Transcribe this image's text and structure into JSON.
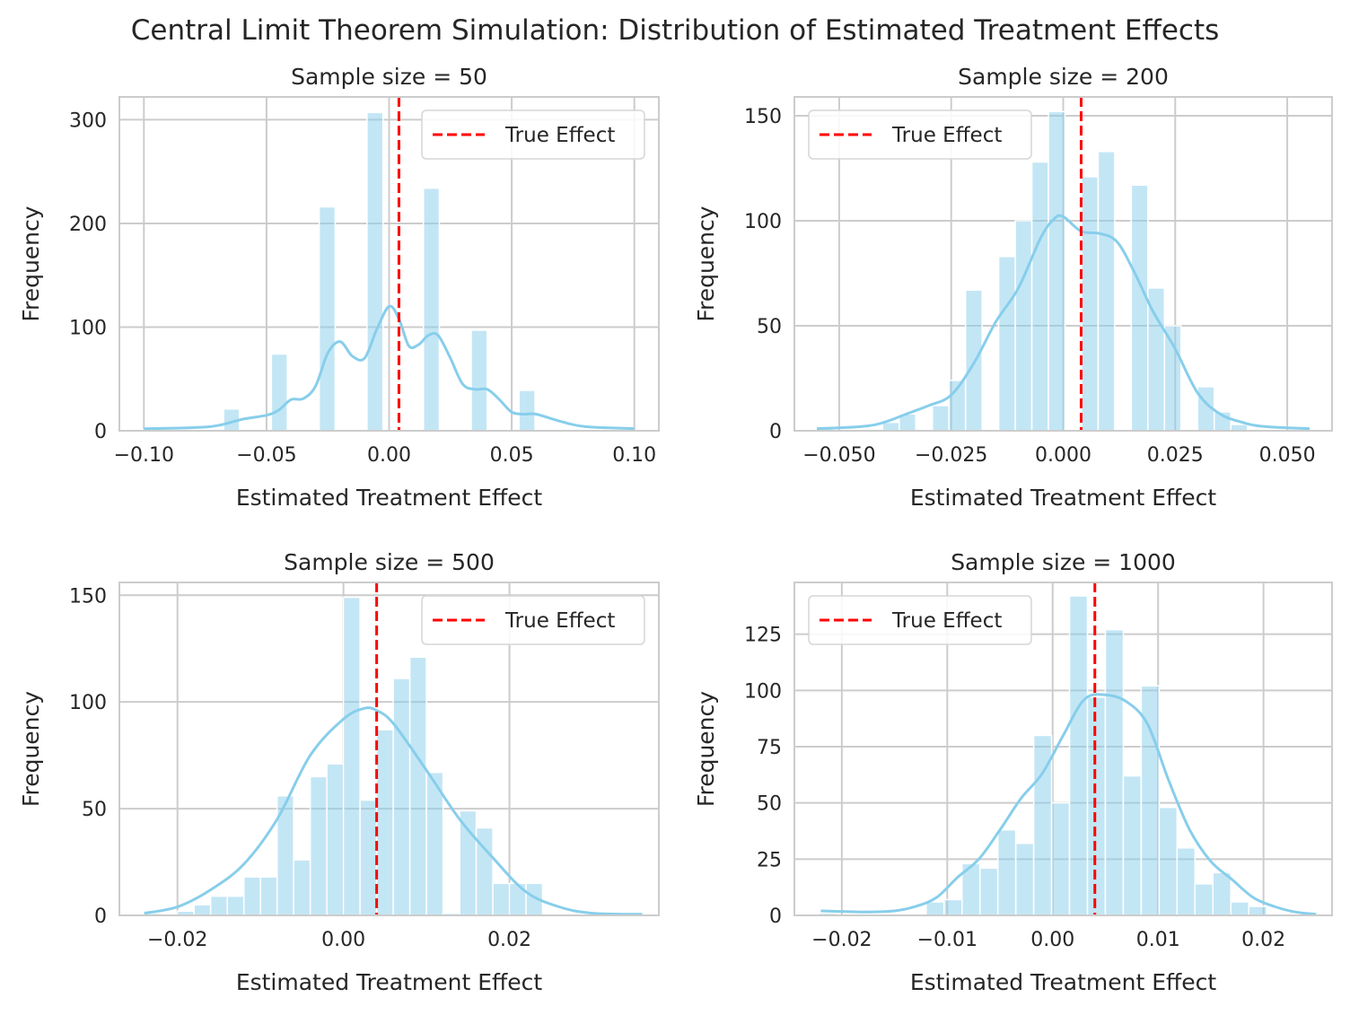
{
  "figure": {
    "suptitle": "Central Limit Theorem Simulation: Distribution of Estimated Treatment Effects"
  },
  "colors": {
    "bar": "#87CEEB",
    "kde": "#87CEEB",
    "true_effect": "#FF0000",
    "grid": "#CCCCCC",
    "text": "#262626"
  },
  "chart_data": [
    {
      "type": "bar",
      "subtype": "histogram-with-kde",
      "title": "Sample size = 50",
      "xlabel": "Estimated Treatment Effect",
      "ylabel": "Frequency",
      "xlim": [
        -0.11,
        0.11
      ],
      "ylim": [
        0,
        322
      ],
      "xticks": [
        -0.1,
        -0.05,
        0.0,
        0.05,
        0.1
      ],
      "xtick_labels": [
        "−0.10",
        "−0.05",
        "0.00",
        "0.05",
        "0.10"
      ],
      "yticks": [
        0,
        100,
        200,
        300
      ],
      "ytick_labels": [
        "0",
        "100",
        "200",
        "300"
      ],
      "true_effect": 0.004,
      "legend": {
        "label": "True Effect",
        "position": "upper right"
      },
      "bins": [
        {
          "x0": -0.1,
          "x1": -0.0935,
          "count": 1
        },
        {
          "x0": -0.0675,
          "x1": -0.061,
          "count": 21
        },
        {
          "x0": -0.048,
          "x1": -0.0415,
          "count": 74
        },
        {
          "x0": -0.0285,
          "x1": -0.022,
          "count": 216
        },
        {
          "x0": -0.009,
          "x1": -0.0025,
          "count": 307
        },
        {
          "x0": 0.014,
          "x1": 0.0205,
          "count": 234
        },
        {
          "x0": 0.0335,
          "x1": 0.04,
          "count": 97
        },
        {
          "x0": 0.053,
          "x1": 0.0595,
          "count": 39
        }
      ],
      "kde": {
        "x": [
          -0.1,
          -0.08,
          -0.07,
          -0.06,
          -0.05,
          -0.045,
          -0.04,
          -0.035,
          -0.03,
          -0.025,
          -0.02,
          -0.015,
          -0.01,
          -0.005,
          0.0,
          0.004,
          0.008,
          0.012,
          0.016,
          0.02,
          0.025,
          0.03,
          0.035,
          0.04,
          0.045,
          0.05,
          0.055,
          0.06,
          0.07,
          0.08,
          0.1
        ],
        "y": [
          2,
          3,
          5,
          11,
          15,
          20,
          30,
          31,
          43,
          75,
          86,
          72,
          70,
          98,
          120,
          108,
          82,
          83,
          92,
          92,
          70,
          45,
          40,
          40,
          30,
          18,
          16,
          16,
          9,
          4,
          2
        ]
      }
    },
    {
      "type": "bar",
      "subtype": "histogram-with-kde",
      "title": "Sample size = 200",
      "xlabel": "Estimated Treatment Effect",
      "ylabel": "Frequency",
      "xlim": [
        -0.06,
        0.06
      ],
      "ylim": [
        0,
        159
      ],
      "xticks": [
        -0.05,
        -0.025,
        0.0,
        0.025,
        0.05
      ],
      "xtick_labels": [
        "−0.050",
        "−0.025",
        "0.000",
        "0.025",
        "0.050"
      ],
      "yticks": [
        0,
        50,
        100,
        150
      ],
      "ytick_labels": [
        "0",
        "50",
        "100",
        "150"
      ],
      "true_effect": 0.004,
      "legend": {
        "label": "True Effect",
        "position": "upper left"
      },
      "bins": [
        {
          "x0": -0.055,
          "x1": -0.0513,
          "count": 1
        },
        {
          "x0": -0.0403,
          "x1": -0.0366,
          "count": 4
        },
        {
          "x0": -0.0366,
          "x1": -0.0329,
          "count": 8
        },
        {
          "x0": -0.0292,
          "x1": -0.0255,
          "count": 12
        },
        {
          "x0": -0.0255,
          "x1": -0.0218,
          "count": 24
        },
        {
          "x0": -0.0218,
          "x1": -0.0181,
          "count": 67
        },
        {
          "x0": -0.0144,
          "x1": -0.0107,
          "count": 83
        },
        {
          "x0": -0.0107,
          "x1": -0.007,
          "count": 100
        },
        {
          "x0": -0.007,
          "x1": -0.0033,
          "count": 128
        },
        {
          "x0": -0.0033,
          "x1": 0.0004,
          "count": 152
        },
        {
          "x0": 0.0041,
          "x1": 0.0078,
          "count": 121
        },
        {
          "x0": 0.0078,
          "x1": 0.0115,
          "count": 133
        },
        {
          "x0": 0.0152,
          "x1": 0.0189,
          "count": 117
        },
        {
          "x0": 0.0189,
          "x1": 0.0226,
          "count": 68
        },
        {
          "x0": 0.0226,
          "x1": 0.0263,
          "count": 50
        },
        {
          "x0": 0.03,
          "x1": 0.0337,
          "count": 21
        },
        {
          "x0": 0.0337,
          "x1": 0.0374,
          "count": 9
        },
        {
          "x0": 0.0374,
          "x1": 0.0411,
          "count": 3
        }
      ],
      "kde": {
        "x": [
          -0.055,
          -0.045,
          -0.04,
          -0.035,
          -0.03,
          -0.025,
          -0.02,
          -0.015,
          -0.01,
          -0.005,
          -0.002,
          0.0,
          0.004,
          0.008,
          0.012,
          0.016,
          0.02,
          0.025,
          0.03,
          0.035,
          0.04,
          0.045,
          0.055
        ],
        "y": [
          1,
          2,
          4,
          8,
          12,
          17,
          32,
          52,
          68,
          92,
          101,
          102,
          95,
          94,
          90,
          75,
          57,
          39,
          18,
          8,
          4,
          2,
          1
        ]
      }
    },
    {
      "type": "bar",
      "subtype": "histogram-with-kde",
      "title": "Sample size = 500",
      "xlabel": "Estimated Treatment Effect",
      "ylabel": "Frequency",
      "xlim": [
        -0.027,
        0.038
      ],
      "ylim": [
        0,
        156
      ],
      "xticks": [
        -0.02,
        0.0,
        0.02
      ],
      "xtick_labels": [
        "−0.02",
        "0.00",
        "0.02"
      ],
      "yticks": [
        0,
        50,
        100,
        150
      ],
      "ytick_labels": [
        "0",
        "50",
        "100",
        "150"
      ],
      "true_effect": 0.004,
      "legend": {
        "label": "True Effect",
        "position": "upper right"
      },
      "bins": [
        {
          "x0": -0.024,
          "x1": -0.022,
          "count": 1
        },
        {
          "x0": -0.02,
          "x1": -0.018,
          "count": 2
        },
        {
          "x0": -0.018,
          "x1": -0.016,
          "count": 5
        },
        {
          "x0": -0.016,
          "x1": -0.014,
          "count": 9
        },
        {
          "x0": -0.014,
          "x1": -0.012,
          "count": 9
        },
        {
          "x0": -0.012,
          "x1": -0.01,
          "count": 18
        },
        {
          "x0": -0.01,
          "x1": -0.008,
          "count": 18
        },
        {
          "x0": -0.008,
          "x1": -0.006,
          "count": 56
        },
        {
          "x0": -0.006,
          "x1": -0.004,
          "count": 26
        },
        {
          "x0": -0.004,
          "x1": -0.002,
          "count": 65
        },
        {
          "x0": -0.002,
          "x1": 0.0,
          "count": 71
        },
        {
          "x0": 0.0,
          "x1": 0.002,
          "count": 149
        },
        {
          "x0": 0.002,
          "x1": 0.004,
          "count": 54
        },
        {
          "x0": 0.004,
          "x1": 0.006,
          "count": 87
        },
        {
          "x0": 0.006,
          "x1": 0.008,
          "count": 111
        },
        {
          "x0": 0.008,
          "x1": 0.01,
          "count": 121
        },
        {
          "x0": 0.01,
          "x1": 0.012,
          "count": 67
        },
        {
          "x0": 0.012,
          "x1": 0.014,
          "count": 1
        },
        {
          "x0": 0.014,
          "x1": 0.016,
          "count": 49
        },
        {
          "x0": 0.016,
          "x1": 0.018,
          "count": 41
        },
        {
          "x0": 0.018,
          "x1": 0.02,
          "count": 15
        },
        {
          "x0": 0.02,
          "x1": 0.022,
          "count": 15
        },
        {
          "x0": 0.022,
          "x1": 0.024,
          "count": 15
        }
      ],
      "kde": {
        "x": [
          -0.024,
          -0.02,
          -0.016,
          -0.012,
          -0.008,
          -0.004,
          0.0,
          0.0025,
          0.004,
          0.006,
          0.01,
          0.014,
          0.018,
          0.022,
          0.026,
          0.03,
          0.036
        ],
        "y": [
          1,
          4,
          12,
          24,
          45,
          75,
          92,
          97,
          96,
          90,
          68,
          45,
          27,
          11,
          4,
          1,
          0.5
        ]
      }
    },
    {
      "type": "bar",
      "subtype": "histogram-with-kde",
      "title": "Sample size = 1000",
      "xlabel": "Estimated Treatment Effect",
      "ylabel": "Frequency",
      "xlim": [
        -0.0245,
        0.0265
      ],
      "ylim": [
        0,
        148
      ],
      "xticks": [
        -0.02,
        -0.01,
        0.0,
        0.01,
        0.02
      ],
      "xtick_labels": [
        "−0.02",
        "−0.01",
        "0.00",
        "0.01",
        "0.02"
      ],
      "yticks": [
        0,
        25,
        50,
        75,
        100,
        125
      ],
      "ytick_labels": [
        "0",
        "25",
        "50",
        "75",
        "100",
        "125"
      ],
      "true_effect": 0.004,
      "legend": {
        "label": "True Effect",
        "position": "upper left"
      },
      "bins": [
        {
          "x0": -0.0222,
          "x1": -0.0205,
          "count": 1
        },
        {
          "x0": -0.012,
          "x1": -0.0103,
          "count": 6
        },
        {
          "x0": -0.0103,
          "x1": -0.0086,
          "count": 7
        },
        {
          "x0": -0.0086,
          "x1": -0.0069,
          "count": 23
        },
        {
          "x0": -0.0069,
          "x1": -0.0052,
          "count": 21
        },
        {
          "x0": -0.0052,
          "x1": -0.0035,
          "count": 38
        },
        {
          "x0": -0.0035,
          "x1": -0.0018,
          "count": 32
        },
        {
          "x0": -0.0018,
          "x1": -0.0001,
          "count": 80
        },
        {
          "x0": -0.0001,
          "x1": 0.0016,
          "count": 50
        },
        {
          "x0": 0.0016,
          "x1": 0.0033,
          "count": 142
        },
        {
          "x0": 0.0033,
          "x1": 0.005,
          "count": 97
        },
        {
          "x0": 0.005,
          "x1": 0.0067,
          "count": 127
        },
        {
          "x0": 0.0067,
          "x1": 0.0084,
          "count": 62
        },
        {
          "x0": 0.0084,
          "x1": 0.0101,
          "count": 102
        },
        {
          "x0": 0.0101,
          "x1": 0.0118,
          "count": 48
        },
        {
          "x0": 0.0118,
          "x1": 0.0135,
          "count": 30
        },
        {
          "x0": 0.0135,
          "x1": 0.0152,
          "count": 14
        },
        {
          "x0": 0.0152,
          "x1": 0.0169,
          "count": 19
        },
        {
          "x0": 0.0169,
          "x1": 0.0186,
          "count": 6
        },
        {
          "x0": 0.0186,
          "x1": 0.0203,
          "count": 4
        }
      ],
      "kde": {
        "x": [
          -0.022,
          -0.018,
          -0.015,
          -0.013,
          -0.011,
          -0.009,
          -0.007,
          -0.005,
          -0.003,
          -0.001,
          0.001,
          0.003,
          0.005,
          0.007,
          0.009,
          0.011,
          0.013,
          0.015,
          0.017,
          0.019,
          0.021,
          0.023,
          0.025
        ],
        "y": [
          2,
          1.5,
          2,
          4,
          8,
          17,
          25,
          38,
          52,
          63,
          80,
          96,
          98,
          95,
          85,
          60,
          38,
          24,
          16,
          8,
          4,
          1.5,
          0.5
        ]
      }
    }
  ]
}
